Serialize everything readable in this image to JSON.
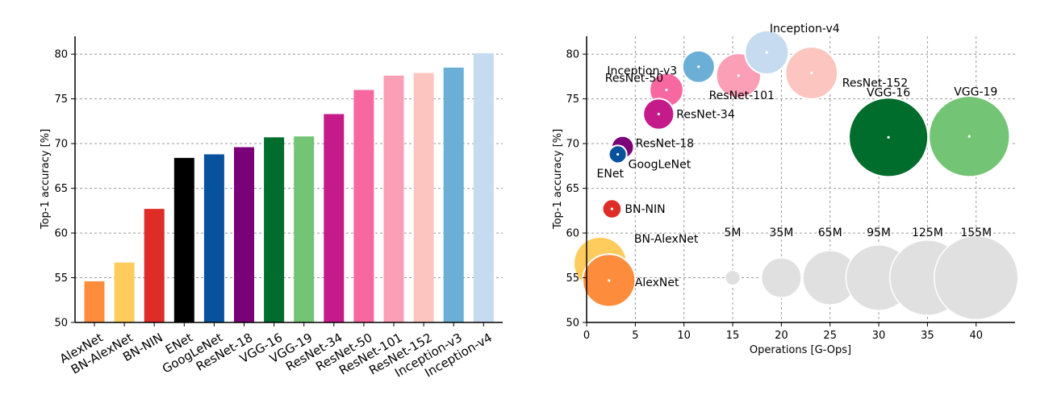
{
  "chart_data": [
    {
      "type": "bar",
      "ylabel": "Top-1 accuracy [%]",
      "xlabel": "",
      "ylim": [
        50,
        82
      ],
      "yticks": [
        50,
        55,
        60,
        65,
        70,
        75,
        80
      ],
      "grid": true,
      "categories": [
        "AlexNet",
        "BN-AlexNet",
        "BN-NIN",
        "ENet",
        "GoogLeNet",
        "ResNet-18",
        "VGG-16",
        "VGG-19",
        "ResNet-34",
        "ResNet-50",
        "ResNet-101",
        "ResNet-152",
        "Inception-v3",
        "Inception-v4"
      ],
      "values": [
        54.6,
        56.7,
        62.7,
        68.4,
        68.8,
        69.6,
        70.7,
        70.8,
        73.3,
        76.0,
        77.6,
        77.9,
        78.5,
        80.1
      ],
      "colors": [
        "#fd8d3c",
        "#fecc5c",
        "#de2d26",
        "#000000",
        "#08519c",
        "#7a0177",
        "#006d2c",
        "#74c476",
        "#c51b8a",
        "#f768a1",
        "#fa9fb5",
        "#fcc5c0",
        "#6baed6",
        "#c6dbef"
      ]
    },
    {
      "type": "scatter",
      "xlabel": "Operations [G-Ops]",
      "ylabel": "Top-1 accuracy [%]",
      "xlim": [
        0,
        44
      ],
      "ylim": [
        50,
        82
      ],
      "xticks": [
        0,
        5,
        10,
        15,
        20,
        25,
        30,
        35,
        40
      ],
      "yticks": [
        50,
        55,
        60,
        65,
        70,
        75,
        80
      ],
      "grid": true,
      "size_unit": "parameters (M)",
      "points": [
        {
          "name": "AlexNet",
          "x": 2.3,
          "y": 54.7,
          "params_m": 61,
          "color": "#fd8d3c"
        },
        {
          "name": "BN-AlexNet",
          "x": 1.4,
          "y": 56.6,
          "params_m": 62,
          "color": "#fecc5c"
        },
        {
          "name": "BN-NIN",
          "x": 2.6,
          "y": 62.7,
          "params_m": 8,
          "color": "#de2d26"
        },
        {
          "name": "ENet",
          "x": 1.7,
          "y": 68.4,
          "params_m": 0.37,
          "color": "#000000"
        },
        {
          "name": "GoogLeNet",
          "x": 3.2,
          "y": 68.8,
          "params_m": 7,
          "color": "#08519c"
        },
        {
          "name": "ResNet-18",
          "x": 3.7,
          "y": 69.6,
          "params_m": 11,
          "color": "#7a0177"
        },
        {
          "name": "VGG-16",
          "x": 31,
          "y": 70.7,
          "params_m": 138,
          "color": "#006d2c"
        },
        {
          "name": "VGG-19",
          "x": 39.3,
          "y": 70.8,
          "params_m": 144,
          "color": "#74c476"
        },
        {
          "name": "ResNet-34",
          "x": 7.4,
          "y": 73.3,
          "params_m": 21,
          "color": "#c51b8a"
        },
        {
          "name": "ResNet-50",
          "x": 8.2,
          "y": 76.0,
          "params_m": 25,
          "color": "#f768a1"
        },
        {
          "name": "ResNet-101",
          "x": 15.6,
          "y": 77.6,
          "params_m": 44,
          "color": "#fa9fb5"
        },
        {
          "name": "ResNet-152",
          "x": 23.1,
          "y": 77.9,
          "params_m": 60,
          "color": "#fcc5c0"
        },
        {
          "name": "Inception-v3",
          "x": 11.5,
          "y": 78.6,
          "params_m": 23,
          "color": "#6baed6"
        },
        {
          "name": "Inception-v4",
          "x": 18.5,
          "y": 80.2,
          "params_m": 42,
          "color": "#c6dbef"
        }
      ],
      "size_legend": [
        {
          "label": "5M",
          "x": 15,
          "params_m": 5
        },
        {
          "label": "35M",
          "x": 20,
          "params_m": 35
        },
        {
          "label": "65M",
          "x": 25,
          "params_m": 65
        },
        {
          "label": "95M",
          "x": 30,
          "params_m": 95
        },
        {
          "label": "125M",
          "x": 35,
          "params_m": 125
        },
        {
          "label": "155M",
          "x": 40,
          "params_m": 155
        }
      ],
      "size_legend_y": 55,
      "size_legend_color": "#e0e0e0"
    }
  ]
}
